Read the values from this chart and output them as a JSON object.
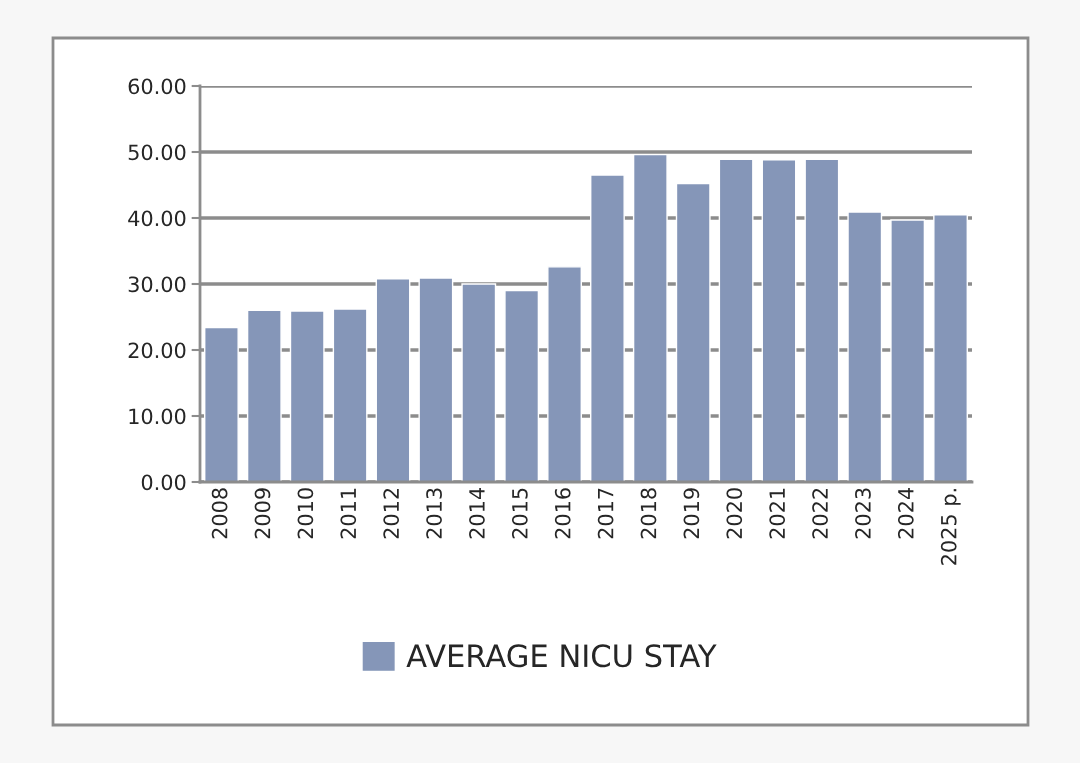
{
  "chart_data": {
    "type": "bar",
    "categories": [
      "2008",
      "2009",
      "2010",
      "2011",
      "2012",
      "2013",
      "2014",
      "2015",
      "2016",
      "2017",
      "2018",
      "2019",
      "2020",
      "2021",
      "2022",
      "2023",
      "2024",
      "2025 p."
    ],
    "series": [
      {
        "name": "AVERAGE NICU STAY",
        "color": "#8596b8",
        "values": [
          23.4,
          26.0,
          25.9,
          26.2,
          30.8,
          30.9,
          30.0,
          29.0,
          32.6,
          46.5,
          49.6,
          45.2,
          48.9,
          48.8,
          48.9,
          40.9,
          39.7,
          40.5
        ]
      }
    ],
    "ylim": [
      0,
      60
    ],
    "yticks": [
      {
        "value": 0,
        "label": "0.00"
      },
      {
        "value": 10,
        "label": "10.00"
      },
      {
        "value": 20,
        "label": "20.00"
      },
      {
        "value": 30,
        "label": "30.00"
      },
      {
        "value": 40,
        "label": "40.00"
      },
      {
        "value": 50,
        "label": "50.00"
      },
      {
        "value": 60,
        "label": "60.00"
      }
    ],
    "grid": "y",
    "legend": "bottom"
  }
}
